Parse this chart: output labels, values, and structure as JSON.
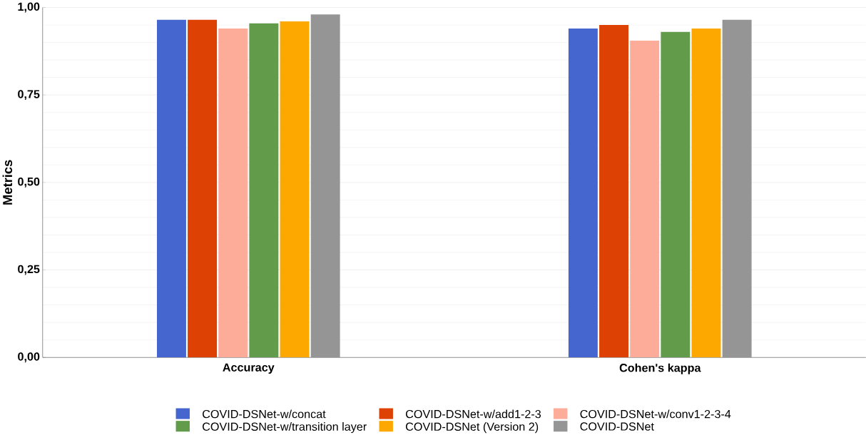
{
  "chart_data": {
    "type": "bar",
    "ylabel": "Metrics",
    "categories": [
      "Accuracy",
      "Cohen's kappa"
    ],
    "series": [
      {
        "name": "COVID-DSNet-w/concat",
        "color": "#4565cf",
        "values": [
          0.965,
          0.94
        ]
      },
      {
        "name": "COVID-DSNet-w/add1-2-3",
        "color": "#dd4103",
        "values": [
          0.965,
          0.95
        ]
      },
      {
        "name": "COVID-DSNet-w/conv1-2-3-4",
        "color": "#fdac9a",
        "values": [
          0.94,
          0.905
        ]
      },
      {
        "name": "COVID-DSNet-w/transition layer",
        "color": "#629c4b",
        "values": [
          0.955,
          0.93
        ]
      },
      {
        "name": "COVID-DSNet (Version 2)",
        "color": "#fda800",
        "values": [
          0.96,
          0.94
        ]
      },
      {
        "name": "COVID-DSNet",
        "color": "#959595",
        "values": [
          0.98,
          0.965
        ]
      }
    ],
    "ylim": [
      0,
      1
    ],
    "yticks": [
      {
        "value": 0,
        "label": "0,00"
      },
      {
        "value": 0.25,
        "label": "0,25"
      },
      {
        "value": 0.5,
        "label": "0,50"
      },
      {
        "value": 0.75,
        "label": "0,75"
      },
      {
        "value": 1,
        "label": "1,00"
      }
    ],
    "grid": "y",
    "legend": "bottom"
  }
}
